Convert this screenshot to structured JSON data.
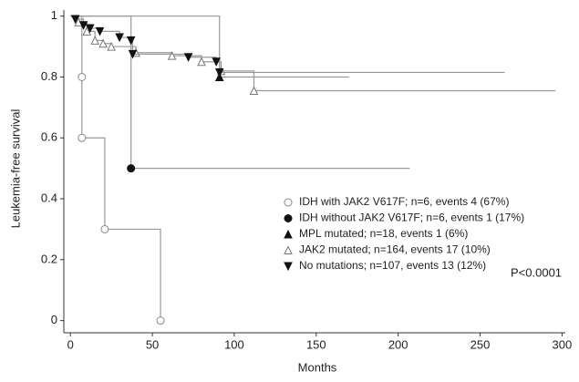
{
  "chart_data": {
    "type": "step",
    "y_label": "Leukemia-free survival",
    "x_label": "Months",
    "annotation": "P<0.0001",
    "xlim": [
      -4,
      302
    ],
    "ylim": [
      -0.04,
      1.02
    ],
    "xticks": [
      0,
      50,
      100,
      150,
      200,
      250,
      300
    ],
    "yticks": [
      0,
      0.2,
      0.4,
      0.6,
      0.8,
      1
    ],
    "series": [
      {
        "name": "IDH with JAK2 V617F; n=6, events 4 (67%)",
        "marker": "open-circle",
        "color": "#999999",
        "x": [
          0,
          7,
          7,
          21,
          55
        ],
        "values": [
          1,
          0.8,
          0.6,
          0.3,
          0
        ]
      },
      {
        "name": "IDH without JAK2 V617F; n=6, events 1 (17%)",
        "marker": "filled-circle",
        "color": "#999999",
        "x": [
          0,
          37,
          207
        ],
        "values": [
          1,
          0.5,
          0.5
        ]
      },
      {
        "name": "MPL mutated; n=18, events 1 (6%)",
        "marker": "filled-triangle-up",
        "color": "#999999",
        "x": [
          0,
          91,
          170
        ],
        "values": [
          1,
          0.8,
          0.8
        ]
      },
      {
        "name": "JAK2 mutated; n=164, events 17 (10%)",
        "marker": "open-triangle-up",
        "color": "#999999",
        "x": [
          0,
          5,
          10,
          15,
          20,
          25,
          40,
          62,
          80,
          92,
          112,
          296
        ],
        "values": [
          1,
          0.98,
          0.95,
          0.92,
          0.91,
          0.9,
          0.88,
          0.87,
          0.85,
          0.82,
          0.755,
          0.755
        ]
      },
      {
        "name": "No mutations; n=107, events 13 (12%)",
        "marker": "filled-triangle-down",
        "color": "#999999",
        "x": [
          0,
          3,
          8,
          12,
          18,
          30,
          37,
          38,
          72,
          89,
          91,
          265
        ],
        "values": [
          1,
          0.99,
          0.97,
          0.96,
          0.95,
          0.93,
          0.92,
          0.875,
          0.865,
          0.85,
          0.815,
          0.815
        ]
      }
    ]
  }
}
